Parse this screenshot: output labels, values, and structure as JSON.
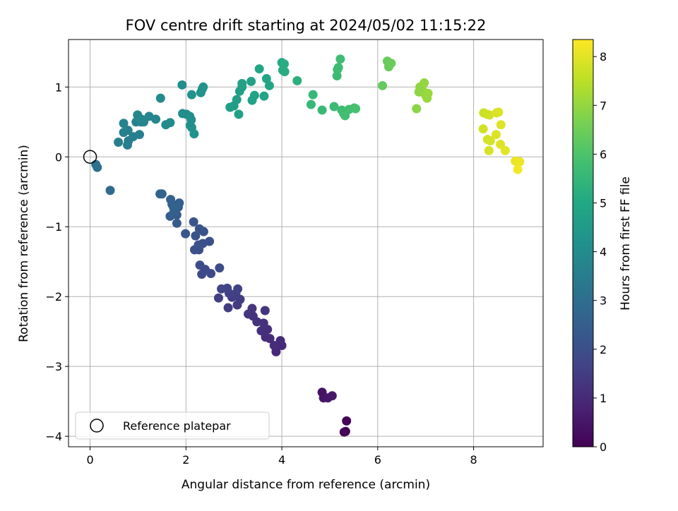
{
  "chart_data": {
    "type": "scatter",
    "title": "FOV centre drift starting at 2024/05/02 11:15:22",
    "xlabel": "Angular distance from reference (arcmin)",
    "ylabel": "Rotation from reference (arcmin)",
    "xlim": [
      -0.45,
      9.45
    ],
    "ylim": [
      -4.15,
      1.68
    ],
    "x_ticks": [
      0,
      2,
      4,
      6,
      8
    ],
    "y_ticks": [
      -4,
      -3,
      -2,
      -1,
      0,
      1
    ],
    "x_tick_labels": [
      "0",
      "2",
      "4",
      "6",
      "8"
    ],
    "y_tick_labels": [
      "−4",
      "−3",
      "−2",
      "−1",
      "0",
      "1"
    ],
    "grid": true,
    "legend": {
      "placement": "bottom-left",
      "entries": [
        {
          "label": "Reference platepar",
          "marker": "open-circle",
          "x": 0,
          "y": 0
        }
      ]
    },
    "colorbar": {
      "label": "Hours from first FF file",
      "colormap": "viridis",
      "range": [
        0,
        8.35
      ],
      "ticks": [
        0,
        1,
        2,
        3,
        4,
        5,
        6,
        7,
        8
      ],
      "tick_labels": [
        "0",
        "1",
        "2",
        "3",
        "4",
        "5",
        "6",
        "7",
        "8"
      ]
    },
    "points": [
      {
        "x": 5.3,
        "y": -3.94,
        "c": 0.05
      },
      {
        "x": 5.33,
        "y": -3.93,
        "c": 0.1
      },
      {
        "x": 5.35,
        "y": -3.78,
        "c": 0.15
      },
      {
        "x": 4.84,
        "y": -3.37,
        "c": 0.4
      },
      {
        "x": 4.87,
        "y": -3.45,
        "c": 0.45
      },
      {
        "x": 4.96,
        "y": -3.45,
        "c": 0.5
      },
      {
        "x": 5.05,
        "y": -3.42,
        "c": 0.55
      },
      {
        "x": 3.88,
        "y": -2.79,
        "c": 0.95
      },
      {
        "x": 4.0,
        "y": -2.7,
        "c": 1.0
      },
      {
        "x": 3.97,
        "y": -2.63,
        "c": 1.02
      },
      {
        "x": 3.84,
        "y": -2.7,
        "c": 1.05
      },
      {
        "x": 3.75,
        "y": -2.6,
        "c": 1.08
      },
      {
        "x": 3.66,
        "y": -2.58,
        "c": 1.1
      },
      {
        "x": 3.7,
        "y": -2.47,
        "c": 1.12
      },
      {
        "x": 3.57,
        "y": -2.49,
        "c": 1.15
      },
      {
        "x": 3.62,
        "y": -2.38,
        "c": 1.18
      },
      {
        "x": 3.48,
        "y": -2.36,
        "c": 1.2
      },
      {
        "x": 3.4,
        "y": -2.28,
        "c": 1.22
      },
      {
        "x": 3.3,
        "y": -2.25,
        "c": 1.25
      },
      {
        "x": 3.65,
        "y": -2.2,
        "c": 1.27
      },
      {
        "x": 3.38,
        "y": -2.17,
        "c": 1.3
      },
      {
        "x": 3.07,
        "y": -2.12,
        "c": 1.45
      },
      {
        "x": 2.88,
        "y": -2.16,
        "c": 1.48
      },
      {
        "x": 3.13,
        "y": -2.04,
        "c": 1.5
      },
      {
        "x": 2.96,
        "y": -2.01,
        "c": 1.52
      },
      {
        "x": 2.68,
        "y": -2.02,
        "c": 1.55
      },
      {
        "x": 3.04,
        "y": -1.96,
        "c": 1.57
      },
      {
        "x": 2.9,
        "y": -1.95,
        "c": 1.6
      },
      {
        "x": 3.08,
        "y": -1.89,
        "c": 1.62
      },
      {
        "x": 2.86,
        "y": -1.88,
        "c": 1.65
      },
      {
        "x": 2.74,
        "y": -1.89,
        "c": 1.67
      },
      {
        "x": 2.33,
        "y": -1.68,
        "c": 1.85
      },
      {
        "x": 2.52,
        "y": -1.67,
        "c": 1.87
      },
      {
        "x": 2.4,
        "y": -1.61,
        "c": 1.9
      },
      {
        "x": 2.29,
        "y": -1.55,
        "c": 1.92
      },
      {
        "x": 2.7,
        "y": -1.59,
        "c": 1.95
      },
      {
        "x": 2.27,
        "y": -1.33,
        "c": 2.0
      },
      {
        "x": 2.18,
        "y": -1.33,
        "c": 2.02
      },
      {
        "x": 2.35,
        "y": -1.24,
        "c": 2.05
      },
      {
        "x": 2.49,
        "y": -1.21,
        "c": 2.07
      },
      {
        "x": 2.26,
        "y": -1.26,
        "c": 2.1
      },
      {
        "x": 2.2,
        "y": -1.13,
        "c": 2.12
      },
      {
        "x": 2.28,
        "y": -1.03,
        "c": 2.15
      },
      {
        "x": 2.37,
        "y": -1.07,
        "c": 2.17
      },
      {
        "x": 2.16,
        "y": -0.93,
        "c": 2.2
      },
      {
        "x": 1.99,
        "y": -1.1,
        "c": 2.22
      },
      {
        "x": 1.81,
        "y": -0.95,
        "c": 2.4
      },
      {
        "x": 1.81,
        "y": -0.83,
        "c": 2.42
      },
      {
        "x": 1.67,
        "y": -0.85,
        "c": 2.45
      },
      {
        "x": 1.84,
        "y": -0.72,
        "c": 2.47
      },
      {
        "x": 1.75,
        "y": -0.79,
        "c": 2.5
      },
      {
        "x": 1.71,
        "y": -0.68,
        "c": 2.52
      },
      {
        "x": 1.86,
        "y": -0.66,
        "c": 2.55
      },
      {
        "x": 1.68,
        "y": -0.61,
        "c": 2.57
      },
      {
        "x": 1.5,
        "y": -0.53,
        "c": 2.6
      },
      {
        "x": 1.46,
        "y": -0.53,
        "c": 2.62
      },
      {
        "x": 1.74,
        "y": -0.72,
        "c": 2.65
      },
      {
        "x": 0.42,
        "y": -0.48,
        "c": 2.9
      },
      {
        "x": 0.15,
        "y": -0.15,
        "c": 3.05
      },
      {
        "x": 0.12,
        "y": -0.11,
        "c": 3.1
      },
      {
        "x": 0.78,
        "y": 0.17,
        "c": 3.5
      },
      {
        "x": 0.8,
        "y": 0.23,
        "c": 3.52
      },
      {
        "x": 0.59,
        "y": 0.21,
        "c": 3.55
      },
      {
        "x": 0.9,
        "y": 0.29,
        "c": 3.57
      },
      {
        "x": 0.7,
        "y": 0.35,
        "c": 3.6
      },
      {
        "x": 1.03,
        "y": 0.32,
        "c": 3.62
      },
      {
        "x": 0.79,
        "y": 0.38,
        "c": 3.65
      },
      {
        "x": 0.7,
        "y": 0.48,
        "c": 3.67
      },
      {
        "x": 0.96,
        "y": 0.5,
        "c": 3.7
      },
      {
        "x": 1.06,
        "y": 0.5,
        "c": 3.72
      },
      {
        "x": 1.12,
        "y": 0.5,
        "c": 3.75
      },
      {
        "x": 0.99,
        "y": 0.6,
        "c": 3.77
      },
      {
        "x": 1.07,
        "y": 0.54,
        "c": 3.8
      },
      {
        "x": 1.23,
        "y": 0.58,
        "c": 3.82
      },
      {
        "x": 1.37,
        "y": 0.54,
        "c": 3.85
      },
      {
        "x": 1.58,
        "y": 0.46,
        "c": 3.95
      },
      {
        "x": 1.67,
        "y": 0.49,
        "c": 3.97
      },
      {
        "x": 1.47,
        "y": 0.84,
        "c": 4.0
      },
      {
        "x": 1.92,
        "y": 1.03,
        "c": 4.02
      },
      {
        "x": 1.93,
        "y": 0.62,
        "c": 4.05
      },
      {
        "x": 2.01,
        "y": 0.61,
        "c": 4.07
      },
      {
        "x": 2.08,
        "y": 0.58,
        "c": 4.1
      },
      {
        "x": 2.11,
        "y": 0.53,
        "c": 4.12
      },
      {
        "x": 2.09,
        "y": 0.45,
        "c": 4.15
      },
      {
        "x": 2.12,
        "y": 0.42,
        "c": 4.17
      },
      {
        "x": 2.17,
        "y": 0.33,
        "c": 4.2
      },
      {
        "x": 2.12,
        "y": 0.89,
        "c": 4.22
      },
      {
        "x": 2.31,
        "y": 0.92,
        "c": 4.25
      },
      {
        "x": 2.34,
        "y": 0.97,
        "c": 4.27
      },
      {
        "x": 2.36,
        "y": 1.0,
        "c": 4.3
      },
      {
        "x": 2.92,
        "y": 0.71,
        "c": 4.6
      },
      {
        "x": 3.0,
        "y": 0.73,
        "c": 4.62
      },
      {
        "x": 3.06,
        "y": 0.82,
        "c": 4.65
      },
      {
        "x": 3.1,
        "y": 0.61,
        "c": 4.67
      },
      {
        "x": 3.12,
        "y": 0.94,
        "c": 4.7
      },
      {
        "x": 3.17,
        "y": 1.0,
        "c": 4.72
      },
      {
        "x": 3.17,
        "y": 1.05,
        "c": 4.75
      },
      {
        "x": 3.36,
        "y": 1.08,
        "c": 4.77
      },
      {
        "x": 3.38,
        "y": 0.81,
        "c": 4.8
      },
      {
        "x": 3.43,
        "y": 0.88,
        "c": 4.82
      },
      {
        "x": 3.53,
        "y": 1.26,
        "c": 4.85
      },
      {
        "x": 3.63,
        "y": 0.87,
        "c": 4.87
      },
      {
        "x": 3.68,
        "y": 1.12,
        "c": 4.9
      },
      {
        "x": 3.74,
        "y": 1.02,
        "c": 4.92
      },
      {
        "x": 4.0,
        "y": 1.35,
        "c": 5.1
      },
      {
        "x": 4.02,
        "y": 1.24,
        "c": 5.12
      },
      {
        "x": 4.05,
        "y": 1.33,
        "c": 5.15
      },
      {
        "x": 4.06,
        "y": 1.22,
        "c": 5.17
      },
      {
        "x": 4.32,
        "y": 1.09,
        "c": 5.25
      },
      {
        "x": 4.65,
        "y": 0.89,
        "c": 5.55
      },
      {
        "x": 4.61,
        "y": 0.75,
        "c": 5.57
      },
      {
        "x": 4.84,
        "y": 0.67,
        "c": 5.6
      },
      {
        "x": 5.09,
        "y": 0.72,
        "c": 5.62
      },
      {
        "x": 5.15,
        "y": 1.16,
        "c": 5.65
      },
      {
        "x": 5.16,
        "y": 1.25,
        "c": 5.67
      },
      {
        "x": 5.18,
        "y": 1.28,
        "c": 5.7
      },
      {
        "x": 5.22,
        "y": 1.4,
        "c": 5.72
      },
      {
        "x": 5.25,
        "y": 0.67,
        "c": 5.75
      },
      {
        "x": 5.29,
        "y": 0.62,
        "c": 5.77
      },
      {
        "x": 5.32,
        "y": 0.59,
        "c": 5.8
      },
      {
        "x": 5.4,
        "y": 0.68,
        "c": 5.82
      },
      {
        "x": 5.51,
        "y": 0.7,
        "c": 5.85
      },
      {
        "x": 5.54,
        "y": 0.69,
        "c": 5.87
      },
      {
        "x": 6.1,
        "y": 1.02,
        "c": 6.35
      },
      {
        "x": 6.2,
        "y": 1.37,
        "c": 6.4
      },
      {
        "x": 6.23,
        "y": 1.29,
        "c": 6.42
      },
      {
        "x": 6.28,
        "y": 1.34,
        "c": 6.45
      },
      {
        "x": 6.81,
        "y": 0.69,
        "c": 6.9
      },
      {
        "x": 6.86,
        "y": 0.93,
        "c": 6.92
      },
      {
        "x": 6.88,
        "y": 1.0,
        "c": 6.95
      },
      {
        "x": 6.93,
        "y": 0.96,
        "c": 6.97
      },
      {
        "x": 6.97,
        "y": 1.06,
        "c": 7.0
      },
      {
        "x": 7.0,
        "y": 0.88,
        "c": 7.02
      },
      {
        "x": 7.03,
        "y": 0.84,
        "c": 7.05
      },
      {
        "x": 7.05,
        "y": 0.91,
        "c": 7.07
      },
      {
        "x": 8.21,
        "y": 0.63,
        "c": 7.7
      },
      {
        "x": 8.28,
        "y": 0.61,
        "c": 7.72
      },
      {
        "x": 8.33,
        "y": 0.6,
        "c": 7.75
      },
      {
        "x": 8.2,
        "y": 0.4,
        "c": 7.77
      },
      {
        "x": 8.29,
        "y": 0.25,
        "c": 7.8
      },
      {
        "x": 8.35,
        "y": 0.23,
        "c": 7.82
      },
      {
        "x": 8.32,
        "y": 0.09,
        "c": 7.85
      },
      {
        "x": 8.48,
        "y": 0.63,
        "c": 7.87
      },
      {
        "x": 8.52,
        "y": 0.64,
        "c": 7.9
      },
      {
        "x": 8.47,
        "y": 0.32,
        "c": 7.92
      },
      {
        "x": 8.57,
        "y": 0.46,
        "c": 7.95
      },
      {
        "x": 8.56,
        "y": 0.18,
        "c": 7.97
      },
      {
        "x": 8.66,
        "y": 0.09,
        "c": 8.0
      },
      {
        "x": 8.87,
        "y": -0.06,
        "c": 8.1
      },
      {
        "x": 8.96,
        "y": -0.07,
        "c": 8.15
      },
      {
        "x": 8.92,
        "y": -0.18,
        "c": 8.2
      }
    ]
  }
}
